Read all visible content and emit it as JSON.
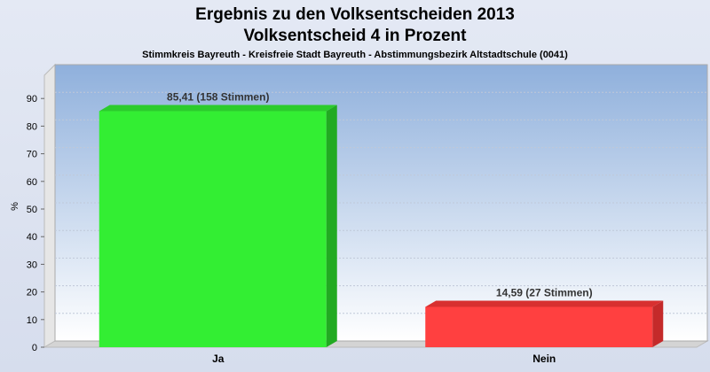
{
  "chart_data": {
    "type": "bar",
    "title": "Ergebnis zu den Volksentscheiden 2013",
    "title_line2": "Volksentscheid 4 in Prozent",
    "subtitle": "Stimmkreis Bayreuth - Kreisfreie Stadt Bayreuth - Abstimmungsbezirk Altstadtschule (0041)",
    "ylabel": "%",
    "ylim": [
      0,
      100
    ],
    "yticks": [
      0,
      10,
      20,
      30,
      40,
      50,
      60,
      70,
      80,
      90
    ],
    "grid": true,
    "categories": [
      "Ja",
      "Nein"
    ],
    "values": [
      85.41,
      14.59
    ],
    "data_labels": [
      "85,41 (158 Stimmen)",
      "14,59 (27 Stimmen)"
    ],
    "colors": [
      "#33ee33",
      "#ff4040"
    ],
    "side_colors": [
      "#22aa22",
      "#c42a2a"
    ],
    "top_colors": [
      "#2ccc2c",
      "#d83030"
    ]
  }
}
